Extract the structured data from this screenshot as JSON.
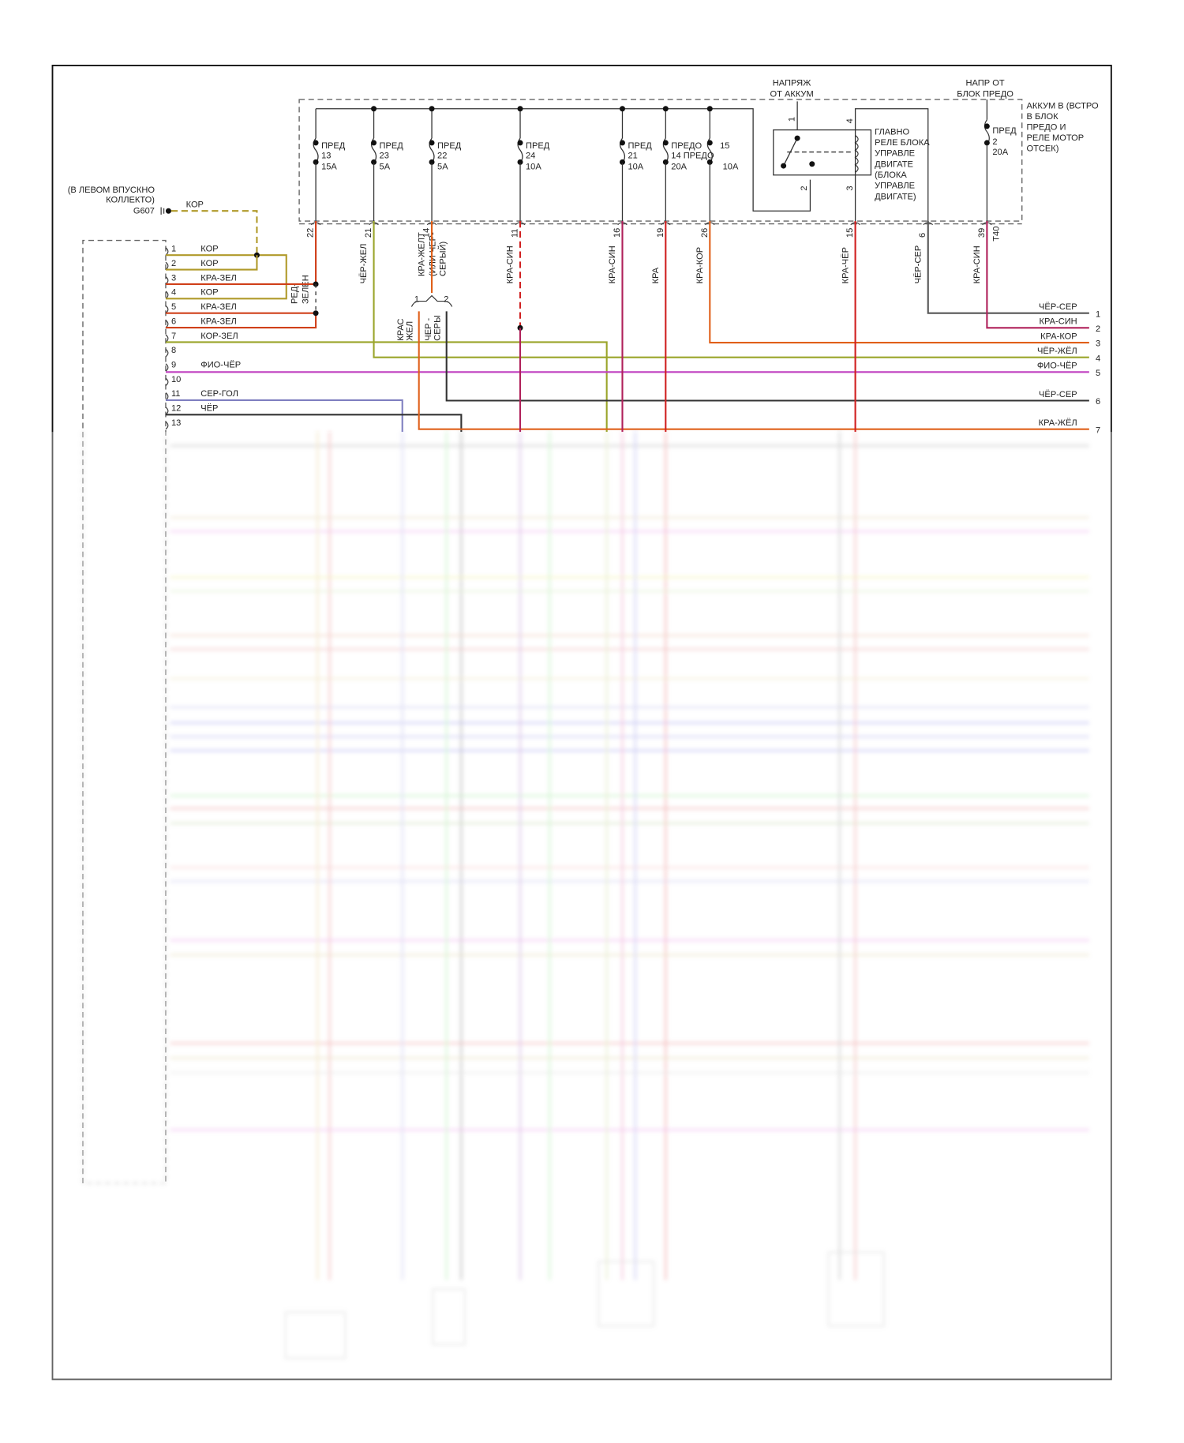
{
  "ground": {
    "location": "(В ЛЕВОМ ВПУСКНО",
    "location2": "КОЛЛЕКТО)",
    "id": "G607",
    "wire": "КОР"
  },
  "fuses": [
    {
      "name": "ПРЕД",
      "num": "13",
      "rating": "15A"
    },
    {
      "name": "ПРЕД",
      "num": "23",
      "rating": "5A"
    },
    {
      "name": "ПРЕД",
      "num": "22",
      "rating": "5A"
    },
    {
      "name": "ПРЕД",
      "num": "24",
      "rating": "10A"
    },
    {
      "name": "ПРЕД",
      "num": "21",
      "rating": "10A"
    },
    {
      "name": "ПРЕДО",
      "num": "14 ПРЕДО",
      "rating": "20A"
    },
    {
      "name": "15",
      "num": "",
      "rating": "10A"
    }
  ],
  "fuse_2": {
    "name": "ПРЕД",
    "num": "2",
    "rating": "20A"
  },
  "battery_feed": {
    "line1": "НАПРЯЖ",
    "line2": "ОТ АККУМ"
  },
  "fuse_block_feed": {
    "line1": "НАПР ОТ",
    "line2": "БЛОК ПРЕДО"
  },
  "fuse_box_label": [
    "АККУМ В (ВСТРО",
    "В БЛОК",
    "ПРЕДО И",
    "РЕЛЕ МОТОР",
    "ОТСЕК)"
  ],
  "relay": {
    "label": [
      "ГЛАВНО",
      "РЕЛЕ БЛОКА",
      "УПРАВЛЕ",
      "ДВИГАТЕ",
      "(БЛОКА",
      "УПРАВЛЕ",
      "ДВИГАТЕ)"
    ],
    "pins": [
      "1",
      "2",
      "3",
      "4"
    ]
  },
  "box_outputs": [
    {
      "pin": "22",
      "wire": "РЕД-",
      "wire2": "ЗЕЛЕН"
    },
    {
      "pin": "21",
      "wire": "ЧЁР-ЖЕЛ",
      "wire2": ""
    },
    {
      "pin": "14",
      "wire": "КРА-ЖЕЛТ",
      "wire2": "(ИЛИ ЧЕР-",
      "wire3": "СЕРЫЙ)"
    },
    {
      "pin": "11",
      "wire": "КРА-СИН",
      "wire2": ""
    },
    {
      "pin": "16",
      "wire": "КРА-СИН",
      "wire2": ""
    },
    {
      "pin": "19",
      "wire": "КРА",
      "wire2": ""
    },
    {
      "pin": "26",
      "wire": "КРА-КОР",
      "wire2": ""
    },
    {
      "pin": "15",
      "wire": "КРА-ЧЁР",
      "wire2": ""
    },
    {
      "pin": "6",
      "wire": "ЧЁР-СЕР",
      "wire2": ""
    },
    {
      "pin": "39",
      "wire": "КРА-СИН",
      "wire2": "",
      "connector": "T40"
    }
  ],
  "splice": {
    "pin1": "1",
    "pin2": "2",
    "wire1a": "КРАС",
    "wire1b": "ЖЕЛ",
    "wire2a": "ЧЕР -",
    "wire2b": "СЕРЫ"
  },
  "left_connector_pins": [
    {
      "pin": "1",
      "wire": "КОР"
    },
    {
      "pin": "2",
      "wire": "КОР"
    },
    {
      "pin": "3",
      "wire": "КРА-ЗЕЛ"
    },
    {
      "pin": "4",
      "wire": "КОР"
    },
    {
      "pin": "5",
      "wire": "КРА-ЗЕЛ"
    },
    {
      "pin": "6",
      "wire": "КРА-ЗЕЛ"
    },
    {
      "pin": "7",
      "wire": "КОР-ЗЕЛ"
    },
    {
      "pin": "8",
      "wire": ""
    },
    {
      "pin": "9",
      "wire": "ФИО-ЧЁР"
    },
    {
      "pin": "10",
      "wire": ""
    },
    {
      "pin": "11",
      "wire": "СЕР-ГОЛ"
    },
    {
      "pin": "12",
      "wire": "ЧЁР"
    },
    {
      "pin": "13",
      "wire": ""
    }
  ],
  "right_connector_pins": [
    {
      "pin": "1",
      "wire": "ЧЁР-СЕР"
    },
    {
      "pin": "2",
      "wire": "КРА-СИН"
    },
    {
      "pin": "3",
      "wire": "КРА-КОР"
    },
    {
      "pin": "4",
      "wire": "ЧЁР-ЖЁЛ"
    },
    {
      "pin": "5",
      "wire": "ФИО-ЧЁР"
    },
    {
      "pin": "6",
      "wire": "ЧЁР-СЕР"
    },
    {
      "pin": "7",
      "wire": "КРА-ЖЁЛ"
    }
  ],
  "colors": {
    "kor": "#b09a2a",
    "red_green": "#d0401a",
    "olive": "#9aa52a",
    "violet": "#c040c0",
    "bluegrey": "#7f7fc0",
    "black": "#333333",
    "red": "#d02020",
    "crimson": "#b0205a",
    "orange": "#e0601a",
    "grey": "#555555"
  }
}
